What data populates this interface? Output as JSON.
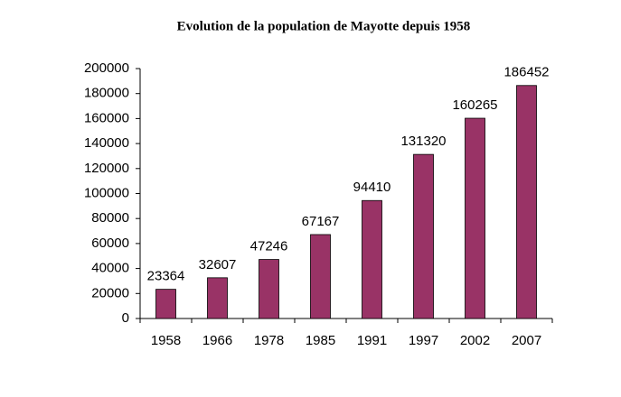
{
  "chart_data": {
    "type": "bar",
    "title": "Evolution de la population de Mayotte depuis 1958",
    "categories": [
      "1958",
      "1966",
      "1978",
      "1985",
      "1991",
      "1997",
      "2002",
      "2007"
    ],
    "values": [
      23364,
      32607,
      47246,
      67167,
      94410,
      131320,
      160265,
      186452
    ],
    "color": "#993366",
    "ylim": [
      0,
      200000
    ],
    "yticks": [
      0,
      20000,
      40000,
      60000,
      80000,
      100000,
      120000,
      140000,
      160000,
      180000,
      200000
    ],
    "grid": false
  }
}
